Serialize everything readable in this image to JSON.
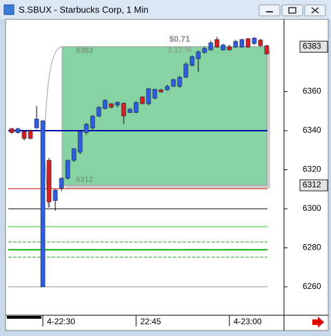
{
  "chart_data": {
    "type": "candlestick",
    "title": "S.SBUX - Starbucks Corp, 1 Min",
    "categories": [
      null,
      null,
      null,
      null,
      null,
      "4-22:30",
      null,
      null,
      null,
      null,
      null,
      null,
      null,
      null,
      null,
      null,
      null,
      null,
      null,
      null,
      "22:45",
      null,
      null,
      null,
      null,
      null,
      null,
      null,
      null,
      null,
      null,
      null,
      null,
      null,
      null,
      "4-23:00",
      null,
      null,
      null,
      null,
      null,
      null
    ],
    "open": [
      6341,
      6339,
      6339.6,
      6340,
      6341.4,
      6260,
      6324.8,
      6304.2,
      6310.6,
      6315.6,
      6324.8,
      6329,
      6339,
      6341.4,
      6347.4,
      6351.3,
      6353.8,
      6353.1,
      6354,
      6349.3,
      6349.3,
      6357.3,
      6353.8,
      6356.6,
      6360.9,
      6360.9,
      6362.7,
      6362.7,
      6367.3,
      6373.4,
      6376.8,
      6380,
      6381.4,
      6386.7,
      6381.4,
      6383,
      6382.8,
      6382.8,
      6387.1,
      6384.6,
      6386.4,
      6383.5
    ],
    "high": [
      6341.5,
      6341.5,
      6340,
      6340.5,
      6352.7,
      6345.5,
      6326,
      6310,
      6316,
      6325,
      6331,
      6340,
      6344,
      6348,
      6352.5,
      6356,
      6354,
      6355,
      6354.5,
      6351.5,
      6355,
      6357.5,
      6362,
      6361.5,
      6361.5,
      6363.5,
      6366.5,
      6368,
      6375,
      6378.5,
      6381,
      6383,
      6386,
      6388,
      6384.5,
      6384,
      6386.5,
      6387,
      6387.5,
      6388,
      6387,
      6384
    ],
    "low": [
      6338.5,
      6338.5,
      6335,
      6335.5,
      6341,
      6260,
      6300.7,
      6299,
      6309,
      6315,
      6324,
      6328,
      6338,
      6340.5,
      6347,
      6351,
      6351.5,
      6352,
      6343.5,
      6349,
      6349,
      6353.5,
      6353,
      6356,
      6359.5,
      6360.5,
      6362.5,
      6362,
      6367,
      6373,
      6370,
      6379.5,
      6381,
      6382.5,
      6381,
      6381,
      6382.5,
      6382.5,
      6382.5,
      6384,
      6383,
      6379
    ],
    "close": [
      6339,
      6341,
      6336,
      6336,
      6346,
      6345,
      6303.5,
      6309.6,
      6315.6,
      6324.8,
      6330.8,
      6339.6,
      6343.2,
      6347.4,
      6352,
      6355.6,
      6352,
      6354.5,
      6347.5,
      6351,
      6354.5,
      6353.8,
      6361.5,
      6361.2,
      6359.8,
      6362.7,
      6366.2,
      6367.3,
      6374,
      6377.9,
      6380.4,
      6382.1,
      6385,
      6382.8,
      6383.9,
      6381.4,
      6385.7,
      6386.7,
      6382.8,
      6387.4,
      6383.5,
      6379.3
    ],
    "up_color": "#2f5fe0",
    "down_color": "#d42020",
    "ylim": [
      6245.8,
      6396.3
    ],
    "yticks": [
      6260,
      6280,
      6300,
      6320,
      6340,
      6360
    ],
    "levels": [
      {
        "value": 6340,
        "color": "#0010b0",
        "style": "solid"
      },
      {
        "value": 6310.3,
        "color": "#d00000",
        "style": "solid"
      },
      {
        "value": 6300,
        "color": "#000000",
        "style": "solid"
      },
      {
        "value": 6290.8,
        "color": "#20c020",
        "style": "solid"
      },
      {
        "value": 6283,
        "color": "#20a020",
        "style": "dashed"
      },
      {
        "value": 6279,
        "color": "#10b010",
        "style": "solid"
      },
      {
        "value": 6275.2,
        "color": "#20a020",
        "style": "dashed"
      },
      {
        "value": 6260,
        "color": "#909090",
        "style": "solid"
      }
    ],
    "range_box": {
      "high": 6383,
      "low": 6312,
      "change": "$0.71",
      "percent": "1.12 %",
      "color": "#86d4a4"
    }
  }
}
